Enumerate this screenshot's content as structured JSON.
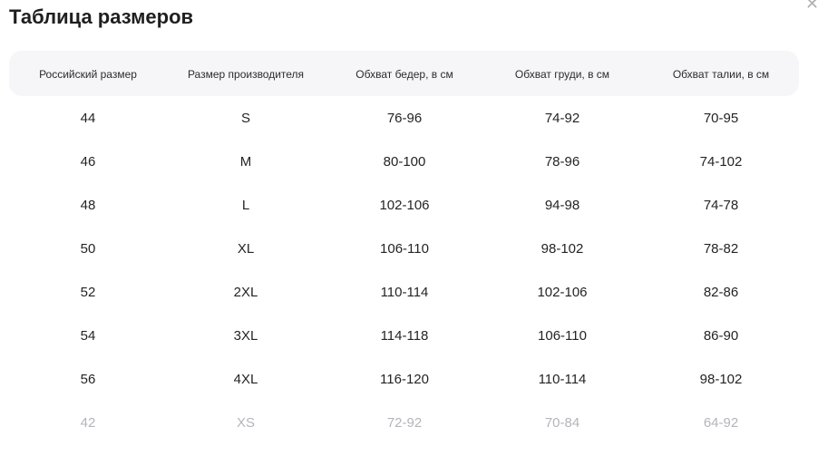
{
  "title": "Таблица размеров",
  "close_icon": "close-icon",
  "columns": [
    "Российский размер",
    "Размер производителя",
    "Обхват бедер, в см",
    "Обхват груди, в см",
    "Обхват талии, в см"
  ],
  "rows": [
    [
      "44",
      "S",
      "76-96",
      "74-92",
      "70-95"
    ],
    [
      "46",
      "M",
      "80-100",
      "78-96",
      "74-102"
    ],
    [
      "48",
      "L",
      "102-106",
      "94-98",
      "74-78"
    ],
    [
      "50",
      "XL",
      "106-110",
      "98-102",
      "78-82"
    ],
    [
      "52",
      "2XL",
      "110-114",
      "102-106",
      "82-86"
    ],
    [
      "54",
      "3XL",
      "114-118",
      "106-110",
      "86-90"
    ],
    [
      "56",
      "4XL",
      "116-120",
      "110-114",
      "98-102"
    ],
    [
      "42",
      "XS",
      "72-92",
      "70-84",
      "64-92"
    ]
  ],
  "faded_text_color": "#b4b4bb",
  "header_bg": "#f6f6f9"
}
